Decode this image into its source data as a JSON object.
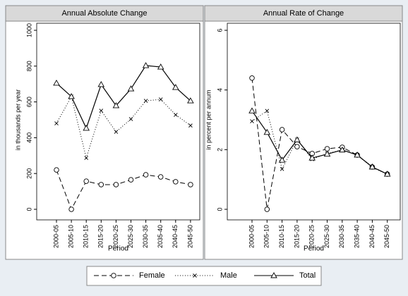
{
  "chart_data": [
    {
      "type": "line",
      "title": "Annual Absolute Change",
      "y_label": "in thousands per year",
      "x_label": "Period",
      "categories": [
        "2000-05",
        "2005-10",
        "2010-15",
        "2015-20",
        "2020-25",
        "2025-30",
        "2030-35",
        "2035-40",
        "2040-45",
        "2045-50"
      ],
      "ylim": [
        0,
        1000
      ],
      "yticks": [
        0,
        200,
        400,
        600,
        800,
        1000
      ],
      "series": [
        {
          "name": "Female",
          "color": "#000000",
          "dash": "dashed",
          "marker": "circle",
          "values": [
            220,
            0,
            157,
            138,
            138,
            165,
            193,
            181,
            154,
            138
          ]
        },
        {
          "name": "Male",
          "color": "#000000",
          "dash": "dotted",
          "marker": "x",
          "values": [
            480,
            630,
            287,
            551,
            433,
            504,
            606,
            614,
            528,
            468
          ]
        },
        {
          "name": "Total",
          "color": "#000000",
          "dash": "solid",
          "marker": "triangle",
          "values": [
            705,
            630,
            453,
            697,
            579,
            673,
            803,
            795,
            681,
            606
          ]
        }
      ]
    },
    {
      "type": "line",
      "title": "Annual Rate of Change",
      "y_label": "in percent per annum",
      "x_label": "Period",
      "categories": [
        "2000-05",
        "2005-10",
        "2010-15",
        "2015-20",
        "2020-25",
        "2025-30",
        "2030-35",
        "2035-40",
        "2040-45",
        "2045-50"
      ],
      "ylim": [
        0,
        6
      ],
      "yticks": [
        0,
        2,
        4,
        6
      ],
      "series": [
        {
          "name": "Female",
          "color": "#000000",
          "dash": "dashed",
          "marker": "circle",
          "values": [
            4.4,
            0,
            2.67,
            2.1,
            1.87,
            2.03,
            2.08,
            1.82,
            1.42,
            1.18
          ]
        },
        {
          "name": "Male",
          "color": "#000000",
          "dash": "dotted",
          "marker": "x",
          "values": [
            2.95,
            3.3,
            1.35,
            2.34,
            1.68,
            1.87,
            1.99,
            1.82,
            1.4,
            1.18
          ]
        },
        {
          "name": "Total",
          "color": "#000000",
          "dash": "solid",
          "marker": "triangle",
          "values": [
            3.3,
            2.58,
            1.65,
            2.33,
            1.72,
            1.85,
            1.99,
            1.82,
            1.42,
            1.18
          ]
        }
      ]
    }
  ]
}
